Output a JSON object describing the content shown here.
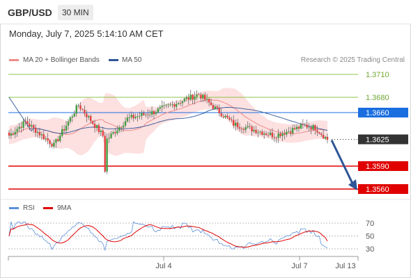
{
  "header": {
    "symbol": "GBP/USD",
    "timeframe": "30 MIN",
    "datetime": "Monday, July 7, 2025 5:14:10 AM CET",
    "credit": "Research © 2025 Trading Central"
  },
  "legend": {
    "ma20": {
      "label": "MA 20 + Bollinger Bands",
      "color": "#f08a8a"
    },
    "ma50": {
      "label": "MA 50",
      "color": "#2f5597"
    }
  },
  "rsi_legend": {
    "rsi": {
      "label": "RSI",
      "color": "#5b8fd9"
    },
    "ma9": {
      "label": "9MA",
      "color": "#e00000"
    }
  },
  "colors": {
    "green_level": "#8bc34a",
    "red_level": "#e00000",
    "pivot_blue": "#1a6ee0",
    "current_dark": "#333333",
    "band_fill": "#fde0e0",
    "bull": "#3f9e3f",
    "bear": "#e04040",
    "arrow": "#2f5597"
  },
  "chart_data": {
    "type": "candlestick",
    "timeframe": "30 MIN",
    "ylim": [
      1.3544,
      1.3728
    ],
    "x_labels": [
      "Jul 4",
      "Jul 7",
      "Jul 13"
    ],
    "levels": [
      {
        "value": 1.371,
        "label": "1.3710",
        "kind": "resistance"
      },
      {
        "value": 1.368,
        "label": "1.3680",
        "kind": "resistance"
      },
      {
        "value": 1.366,
        "label": "1.3660",
        "kind": "pivot"
      },
      {
        "value": 1.3625,
        "label": "1.3625",
        "kind": "current"
      },
      {
        "value": 1.359,
        "label": "1.3590",
        "kind": "support"
      },
      {
        "value": 1.356,
        "label": "1.3560",
        "kind": "support"
      }
    ],
    "key_points": [
      {
        "desc": "start",
        "price": 1.363
      },
      {
        "desc": "rise",
        "price": 1.3648
      },
      {
        "desc": "dip low",
        "price": 1.3617
      },
      {
        "desc": "rebound high",
        "price": 1.367
      },
      {
        "desc": "spike low",
        "price": 1.3585
      },
      {
        "desc": "rally high",
        "price": 1.3684
      },
      {
        "desc": "consolidation",
        "price": 1.3645
      },
      {
        "desc": "latest",
        "price": 1.3625
      }
    ],
    "projection": {
      "from": 1.3624,
      "to": 1.356
    },
    "rsi": {
      "ticks": [
        70,
        50,
        30
      ],
      "ylim": [
        25,
        75
      ],
      "rsi_latest": 31,
      "ma9_latest": 42
    }
  }
}
